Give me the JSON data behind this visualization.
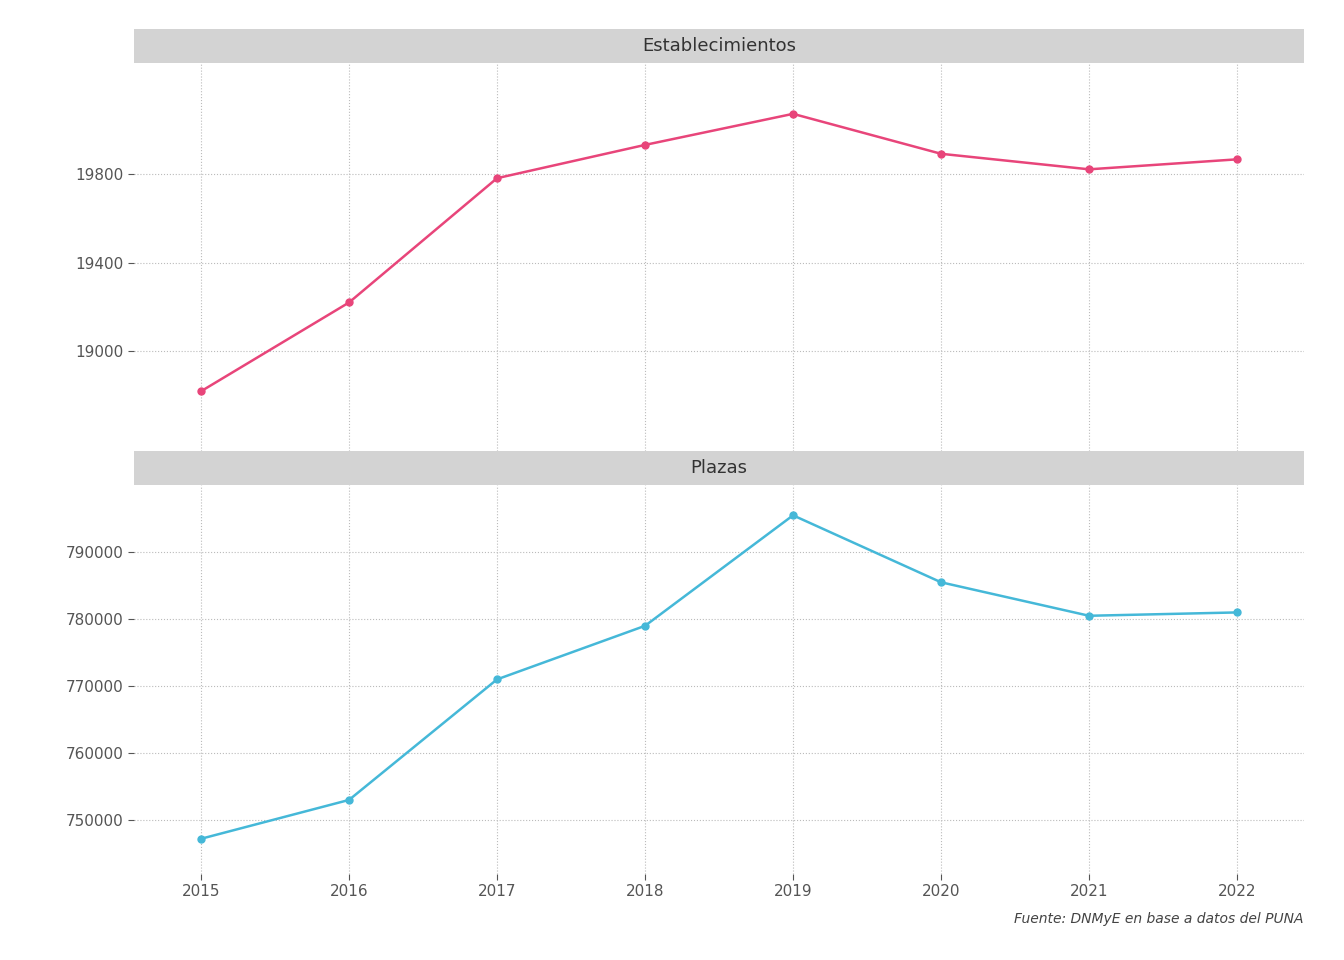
{
  "years": [
    2015,
    2016,
    2017,
    2018,
    2019,
    2020,
    2021,
    2022
  ],
  "establecimientos": [
    18820,
    19220,
    19780,
    19930,
    20070,
    19890,
    19820,
    19865
  ],
  "plazas": [
    747200,
    753000,
    771000,
    779000,
    795500,
    785500,
    780500,
    781000
  ],
  "estab_color": "#E8457A",
  "plazas_color": "#45B8D8",
  "title_estab": "Establecimientos",
  "title_plazas": "Plazas",
  "yticks_estab": [
    19000,
    19400,
    19800
  ],
  "yticks_plazas": [
    750000,
    760000,
    770000,
    780000,
    790000
  ],
  "ylim_estab": [
    18550,
    20300
  ],
  "ylim_plazas": [
    742000,
    800000
  ],
  "background_color": "#ffffff",
  "panel_title_bg": "#D3D3D3",
  "grid_color": "#BBBBBB",
  "tick_label_color": "#555555",
  "source_text": "Fuente: DNMyE en base a datos del PUNA",
  "marker_size": 5,
  "line_width": 1.8,
  "title_fontsize": 13,
  "tick_fontsize": 11
}
